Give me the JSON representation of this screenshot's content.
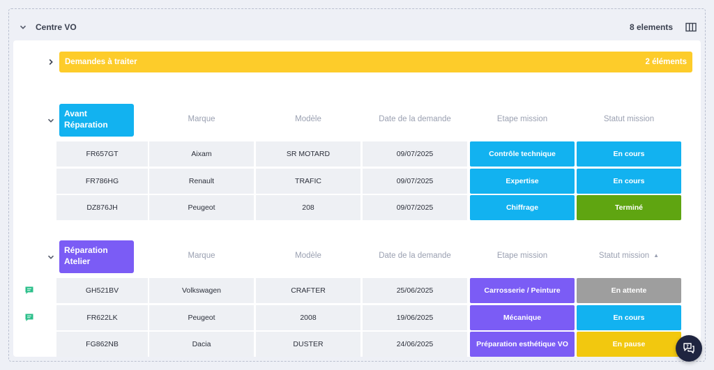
{
  "section": {
    "title": "Centre VO",
    "count": "8 elements"
  },
  "todo": {
    "label": "Demandes à traiter",
    "count": "2 éléments",
    "color": "#fdcc2a"
  },
  "columns": [
    "Marque",
    "Modèle",
    "Date de la demande",
    "Etape mission",
    "Statut mission"
  ],
  "groups": [
    {
      "label": "Avant Réparation",
      "color": "#12b2f0",
      "rows": [
        {
          "plate": "FR657GT",
          "brand": "Aixam",
          "model": "SR MOTARD",
          "date": "09/07/2025",
          "step": "Contrôle technique",
          "status": "En cours",
          "status_color": "#12b2f0"
        },
        {
          "plate": "FR786HG",
          "brand": "Renault",
          "model": "TRAFIC",
          "date": "09/07/2025",
          "step": "Expertise",
          "status": "En cours",
          "status_color": "#12b2f0"
        },
        {
          "plate": "DZ876JH",
          "brand": "Peugeot",
          "model": "208",
          "date": "09/07/2025",
          "step": "Chiffrage",
          "status": "Terminé",
          "status_color": "#5fa511"
        }
      ]
    },
    {
      "label": "Réparation Atelier",
      "color": "#7b5cf5",
      "rows": [
        {
          "plate": "GH521BV",
          "brand": "Volkswagen",
          "model": "CRAFTER",
          "date": "25/06/2025",
          "step": "Carrosserie / Peinture",
          "status": "En attente",
          "status_color": "#9e9e9e",
          "has_comment": true
        },
        {
          "plate": "FR622LK",
          "brand": "Peugeot",
          "model": "2008",
          "date": "19/06/2025",
          "step": "Mécanique",
          "status": "En cours",
          "status_color": "#12b2f0",
          "has_comment": true
        },
        {
          "plate": "FG862NB",
          "brand": "Dacia",
          "model": "DUSTER",
          "date": "24/06/2025",
          "step": "Préparation esthétique VO",
          "status": "En pause",
          "status_color": "#f2c80f"
        }
      ]
    }
  ],
  "icons": {
    "collapse": "chevron-down-icon",
    "expand": "chevron-right-icon",
    "columns": "columns-icon",
    "comment": "comment-icon",
    "help": "help-chat-icon",
    "sort": "sort-asc-icon"
  }
}
